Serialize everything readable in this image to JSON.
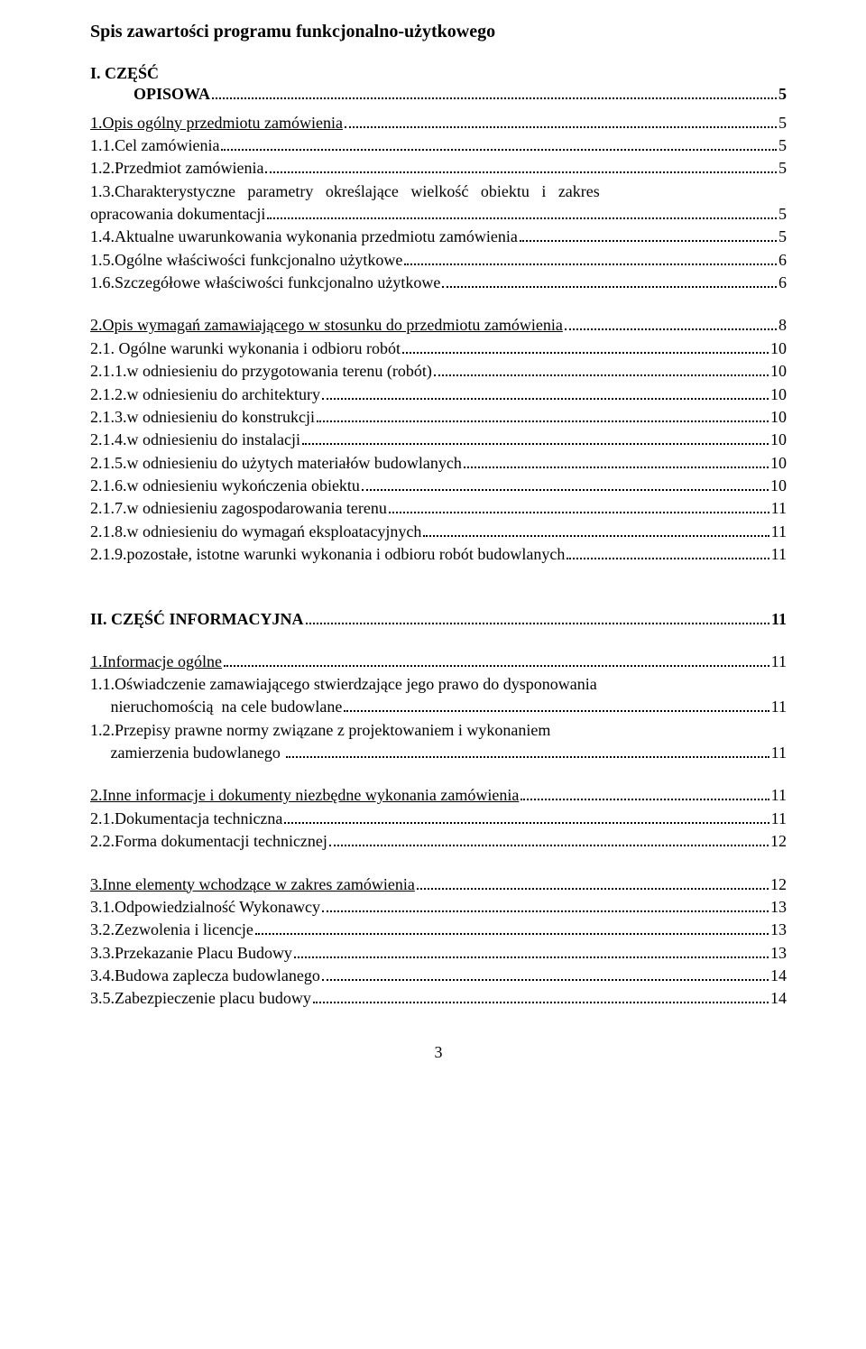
{
  "title": "Spis zawartości programu funkcjonalno-użytkowego",
  "part1": {
    "heading_lead": "I. ",
    "heading_label": "CZĘŚĆ",
    "line2_label": "OPISOWA",
    "line2_page": "5"
  },
  "s1": [
    {
      "lead": "",
      "label": "1.Opis ogólny przedmiotu zamówienia",
      "page": "5"
    },
    {
      "lead": "",
      "label": "1.1.Cel zamówienia",
      "page": " 5"
    },
    {
      "lead": "",
      "label": "1.2.Przedmiot zamówienia",
      "page": "5"
    },
    {
      "lead": "",
      "label": "1.3.Charakterystyczne   parametry   określające   wielkość   obiektu   i   zakres",
      "nodots": true
    },
    {
      "lead": "",
      "label": "opracowania dokumentacji",
      "page": "5"
    },
    {
      "lead": "",
      "label": "1.4.Aktualne uwarunkowania wykonania przedmiotu zamówienia",
      "page": "5"
    },
    {
      "lead": "",
      "label": "1.5.Ogólne właściwości funkcjonalno użytkowe",
      "page": "6"
    },
    {
      "lead": "",
      "label": "1.6.Szczegółowe właściwości funkcjonalno użytkowe",
      "page": "6"
    }
  ],
  "s2": [
    {
      "lead": "",
      "label": "2.Opis wymagań zamawiającego w stosunku do przedmiotu zamówienia",
      "page": "8"
    },
    {
      "lead": "",
      "label": "2.1. Ogólne warunki wykonania i odbioru robót",
      "page": "10"
    },
    {
      "lead": "",
      "label": "2.1.1.w odniesieniu do przygotowania terenu (robót)",
      "page": "10"
    },
    {
      "lead": "",
      "label": "2.1.2.w odniesieniu do architektury",
      "page": "10"
    },
    {
      "lead": "",
      "label": "2.1.3.w odniesieniu do konstrukcji",
      "page": "10"
    },
    {
      "lead": "",
      "label": "2.1.4.w odniesieniu do instalacji",
      "page": "10"
    },
    {
      "lead": "",
      "label": "2.1.5.w odniesieniu do użytych materiałów budowlanych",
      "page": "10"
    },
    {
      "lead": "",
      "label": "2.1.6.w odniesieniu wykończenia obiektu",
      "page": "10"
    },
    {
      "lead": "",
      "label": "2.1.7.w odniesieniu zagospodarowania terenu",
      "page": "11"
    },
    {
      "lead": "",
      "label": "2.1.8.w odniesieniu do wymagań eksploatacyjnych",
      "page": "11"
    },
    {
      "lead": "",
      "label": "2.1.9.pozostałe, istotne warunki wykonania i odbioru robót budowlanych",
      "page": "11"
    }
  ],
  "part2": {
    "label": "II. CZĘŚĆ INFORMACYJNA",
    "page": "11"
  },
  "p2_s1": {
    "head": {
      "label": "1.Informacje ogólne",
      "page": "11"
    },
    "body": [
      {
        "type": "plain",
        "text": "1.1.Oświadczenie zamawiającego stwierdzające jego prawo do dysponowania"
      },
      {
        "type": "toc",
        "lead": "     ",
        "label": "nieruchomością  na cele budowlane",
        "page": "11"
      },
      {
        "type": "plain",
        "text": "1.2.Przepisy prawne normy związane z projektowaniem i wykonaniem"
      },
      {
        "type": "toc",
        "lead": "     ",
        "label": "zamierzenia budowlanego ",
        "page": "11"
      }
    ]
  },
  "p2_s2": [
    {
      "label": "2.Inne informacje i dokumenty niezbędne wykonania zamówienia",
      "page": "11",
      "underline": true
    },
    {
      "label": "2.1.Dokumentacja techniczna",
      "page": "11"
    },
    {
      "label": "2.2.Forma dokumentacji technicznej",
      "page": "12"
    }
  ],
  "p2_s3": [
    {
      "label": "3.Inne elementy wchodzące w zakres zamówienia",
      "page": "12",
      "underline": true
    },
    {
      "label": "3.1.Odpowiedzialność Wykonawcy",
      "page": "13"
    },
    {
      "label": "3.2.Zezwolenia i licencje",
      "page": "13"
    },
    {
      "label": "3.3.Przekazanie Placu Budowy",
      "page": "13"
    },
    {
      "label": "3.4.Budowa zaplecza budowlanego",
      "page": "14"
    },
    {
      "label": "3.5.Zabezpieczenie placu budowy",
      "page": "14"
    }
  ],
  "page_number": "3"
}
